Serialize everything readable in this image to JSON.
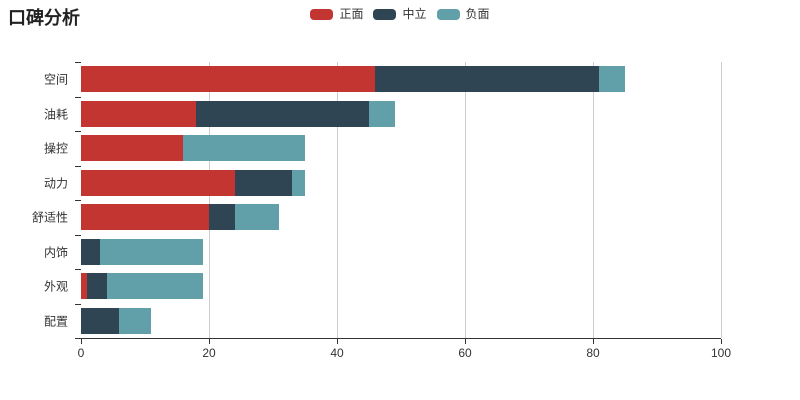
{
  "title": "口碑分析",
  "legend": [
    {
      "label": "正面",
      "color": "#c23531"
    },
    {
      "label": "中立",
      "color": "#2f4554"
    },
    {
      "label": "负面",
      "color": "#61a0a8"
    }
  ],
  "chart_data": {
    "type": "bar",
    "orientation": "horizontal",
    "stacked": true,
    "title": "口碑分析",
    "categories": [
      "空间",
      "油耗",
      "操控",
      "动力",
      "舒适性",
      "内饰",
      "外观",
      "配置"
    ],
    "series": [
      {
        "name": "正面",
        "color": "#c23531",
        "values": [
          46,
          18,
          16,
          24,
          20,
          0,
          1,
          0
        ]
      },
      {
        "name": "中立",
        "color": "#2f4554",
        "values": [
          35,
          27,
          0,
          9,
          4,
          3,
          3,
          6
        ]
      },
      {
        "name": "负面",
        "color": "#61a0a8",
        "values": [
          4,
          4,
          19,
          2,
          7,
          16,
          15,
          5
        ]
      }
    ],
    "xlim": [
      0,
      100
    ],
    "x_ticks": [
      0,
      20,
      40,
      60,
      80,
      100
    ],
    "grid": true,
    "legend_position": "top-center"
  }
}
